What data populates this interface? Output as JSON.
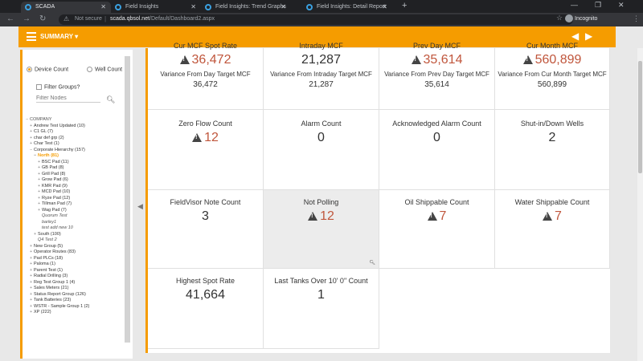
{
  "browser": {
    "tabs": [
      {
        "label": "SCADA"
      },
      {
        "label": "Field Insights"
      },
      {
        "label": "Field Insights: Trend Graphs"
      },
      {
        "label": "Field Insights: Detail Report"
      }
    ],
    "url_secure": "Not secure",
    "url_host": "scada.qbsol.net",
    "url_path": "/Default/Dashboard2.aspx",
    "incognito": "Incognito"
  },
  "header": {
    "menu_label": "SUMMARY ▾"
  },
  "sidebar": {
    "radio_device": "Device Count",
    "radio_well": "Well Count",
    "filter_groups": "Filter Groups?",
    "filter_placeholder": "Filter Nodes",
    "tree": [
      {
        "label": "COMPANY",
        "pm": "−",
        "indent": 0,
        "cls": "top"
      },
      {
        "label": "Andrew Test Updated (10)",
        "pm": "+",
        "indent": 1
      },
      {
        "label": "C1 GL (7)",
        "pm": "+",
        "indent": 1
      },
      {
        "label": "char def grp (2)",
        "pm": "+",
        "indent": 1
      },
      {
        "label": "Char Test (1)",
        "pm": "+",
        "indent": 1
      },
      {
        "label": "Corporate Hierarchy (157)",
        "pm": "−",
        "indent": 1
      },
      {
        "label": "North (81)",
        "pm": "−",
        "indent": 2,
        "cls": "sel"
      },
      {
        "label": "BSC Pad (11)",
        "pm": "+",
        "indent": 3
      },
      {
        "label": "GB Pad (8)",
        "pm": "+",
        "indent": 3
      },
      {
        "label": "Grill Pad (8)",
        "pm": "+",
        "indent": 3
      },
      {
        "label": "Grow Pad (6)",
        "pm": "+",
        "indent": 3
      },
      {
        "label": "KMR Pad (9)",
        "pm": "+",
        "indent": 3
      },
      {
        "label": "MCD Pad (10)",
        "pm": "+",
        "indent": 3
      },
      {
        "label": "Ryze Pad (12)",
        "pm": "+",
        "indent": 3
      },
      {
        "label": "Tillman Pad (7)",
        "pm": "+",
        "indent": 3
      },
      {
        "label": "Wag Pad (7)",
        "pm": "+",
        "indent": 3
      },
      {
        "label": "Quorum Test",
        "pm": "",
        "indent": 3,
        "cls": "it"
      },
      {
        "label": "barley1",
        "pm": "",
        "indent": 3,
        "cls": "it"
      },
      {
        "label": "test add new 10",
        "pm": "",
        "indent": 3,
        "cls": "it"
      },
      {
        "label": "South (100)",
        "pm": "+",
        "indent": 2
      },
      {
        "label": "Q4 Test 2",
        "pm": "",
        "indent": 2,
        "cls": "it"
      },
      {
        "label": "New Group (5)",
        "pm": "+",
        "indent": 1
      },
      {
        "label": "Operator Routes (83)",
        "pm": "+",
        "indent": 1
      },
      {
        "label": "Pad PLCs (18)",
        "pm": "+",
        "indent": 1
      },
      {
        "label": "Paloma (1)",
        "pm": "+",
        "indent": 1
      },
      {
        "label": "Parent Test (1)",
        "pm": "+",
        "indent": 1
      },
      {
        "label": "Radial Drilling (3)",
        "pm": "+",
        "indent": 1
      },
      {
        "label": "Reg Test Group 1 (4)",
        "pm": "+",
        "indent": 1
      },
      {
        "label": "Sales Meters (21)",
        "pm": "+",
        "indent": 1
      },
      {
        "label": "Status Report Group (126)",
        "pm": "+",
        "indent": 1
      },
      {
        "label": "Tank Batteries (23)",
        "pm": "+",
        "indent": 1
      },
      {
        "label": "WSTR - Sample Group 1 (2)",
        "pm": "+",
        "indent": 1
      },
      {
        "label": "XP (222)",
        "pm": "+",
        "indent": 1
      }
    ]
  },
  "tiles": {
    "spot_rate": {
      "title": "Cur MCF Spot Rate",
      "value": "36,472",
      "sub": "Variance From Day Target MCF",
      "subval": "36,472"
    },
    "intraday": {
      "title": "Intraday MCF",
      "value": "21,287",
      "sub": "Variance From Intraday Target MCF",
      "subval": "21,287"
    },
    "prev_day": {
      "title": "Prev Day MCF",
      "value": "35,614",
      "sub": "Variance From Prev Day Target MCF",
      "subval": "35,614"
    },
    "cur_month": {
      "title": "Cur Month MCF",
      "value": "560,899",
      "sub": "Variance From Cur Month Target MCF",
      "subval": "560,899"
    },
    "zero_flow": {
      "title": "Zero Flow Count",
      "value": "12"
    },
    "alarm": {
      "title": "Alarm Count",
      "value": "0"
    },
    "ack_alarm": {
      "title": "Acknowledged Alarm Count",
      "value": "0"
    },
    "shut_in": {
      "title": "Shut-in/Down Wells",
      "value": "2"
    },
    "fieldvisor": {
      "title": "FieldVisor Note Count",
      "value": "3"
    },
    "not_polling": {
      "title": "Not Polling",
      "value": "12"
    },
    "oil": {
      "title": "Oil Shippable Count",
      "value": "7"
    },
    "water": {
      "title": "Water Shippable Count",
      "value": "7"
    },
    "highest_spot": {
      "title": "Highest Spot Rate",
      "value": "41,664"
    },
    "last_tanks": {
      "title": "Last Tanks Over 10' 0\" Count",
      "value": "1"
    }
  }
}
